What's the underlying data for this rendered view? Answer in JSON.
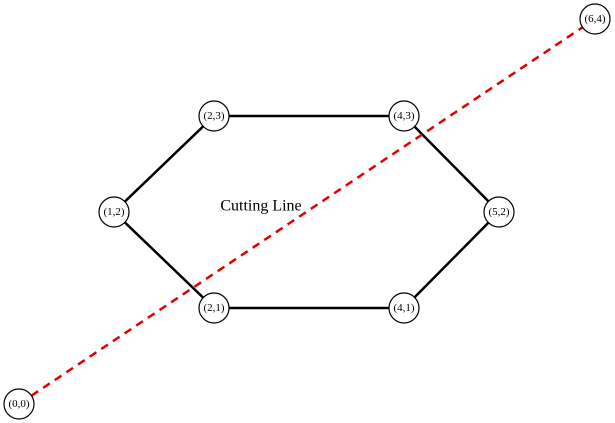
{
  "colors": {
    "edge": "#000000",
    "cut_line": "#e00000",
    "node_fill": "#ffffff",
    "node_stroke": "#000000"
  },
  "annotation": "Cutting Line",
  "nodes": [
    {
      "id": "n21",
      "label": "(2,1)"
    },
    {
      "id": "n41",
      "label": "(4,1)"
    },
    {
      "id": "n52",
      "label": "(5,2)"
    },
    {
      "id": "n43",
      "label": "(4,3)"
    },
    {
      "id": "n23",
      "label": "(2,3)"
    },
    {
      "id": "n12",
      "label": "(1,2)"
    },
    {
      "id": "n00",
      "label": "(0,0)"
    },
    {
      "id": "n64",
      "label": "(6,4)"
    }
  ],
  "polygon_edges": [
    {
      "from": "n21",
      "to": "n41"
    },
    {
      "from": "n41",
      "to": "n52"
    },
    {
      "from": "n52",
      "to": "n43"
    },
    {
      "from": "n43",
      "to": "n23"
    },
    {
      "from": "n23",
      "to": "n12"
    },
    {
      "from": "n12",
      "to": "n21"
    }
  ],
  "cutting_line": {
    "from": "n00",
    "to": "n64"
  }
}
